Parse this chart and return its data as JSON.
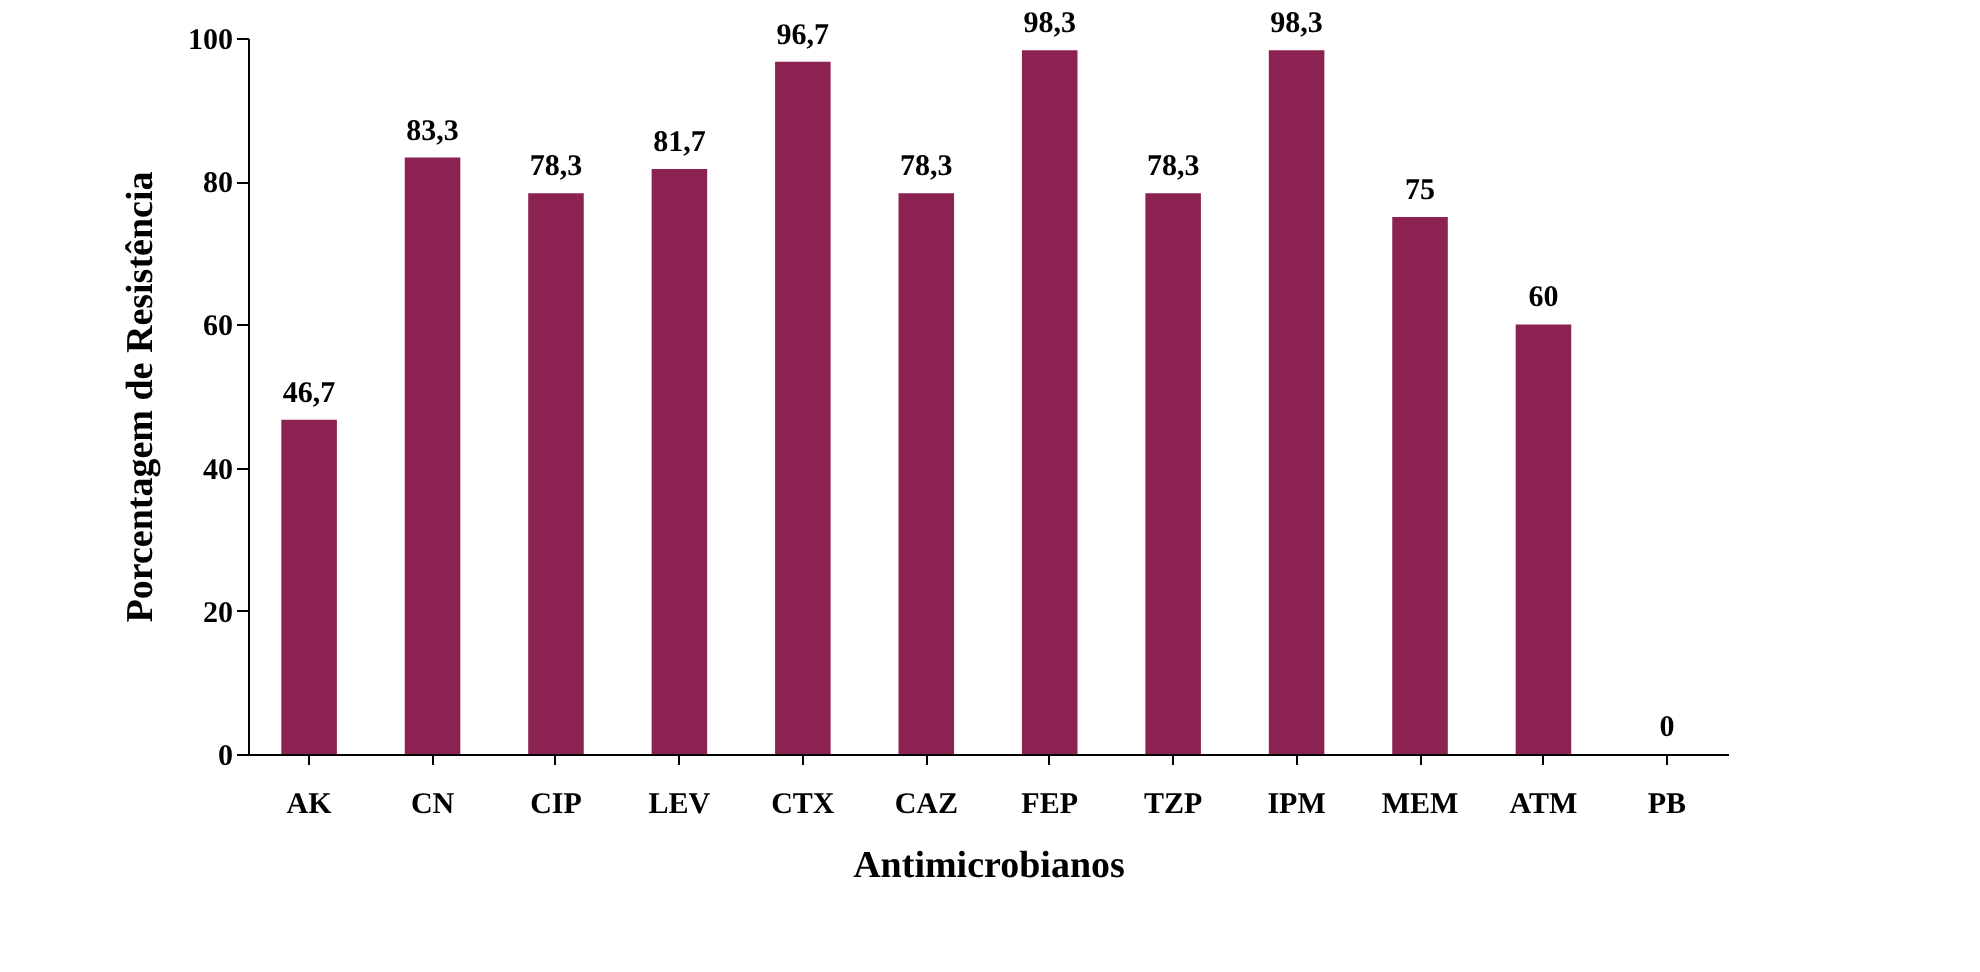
{
  "chart_data": {
    "type": "bar",
    "xlabel": "Antimicrobianos",
    "ylabel": "Porcentagem de Resistência",
    "categories": [
      "AK",
      "CN",
      "CIP",
      "LEV",
      "CTX",
      "CAZ",
      "FEP",
      "TZP",
      "IPM",
      "MEM",
      "ATM",
      "PB"
    ],
    "values": [
      46.7,
      83.3,
      78.3,
      81.7,
      96.7,
      78.3,
      98.3,
      78.3,
      98.3,
      75,
      60,
      0
    ],
    "value_labels": [
      "46,7",
      "83,3",
      "78,3",
      "81,7",
      "96,7",
      "78,3",
      "98,3",
      "78,3",
      "98,3",
      "75",
      "60",
      "0"
    ],
    "color": "#8b2252",
    "ylim": [
      0,
      100
    ],
    "yticks": [
      0,
      20,
      40,
      60,
      80,
      100
    ],
    "grid": false
  }
}
